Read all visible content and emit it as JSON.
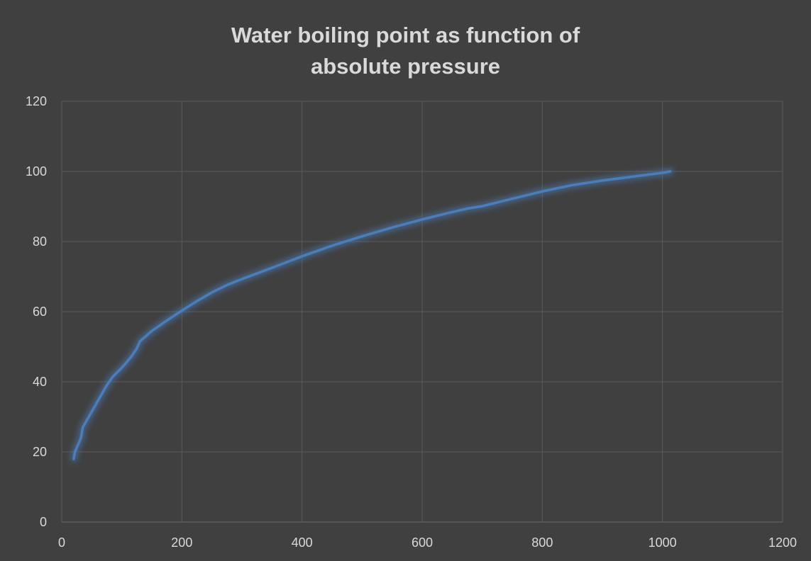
{
  "chart_data": {
    "type": "line",
    "title_lines": [
      "Water boiling point as function of",
      "absolute pressure"
    ],
    "xlabel": "",
    "ylabel": "",
    "xlim": [
      0,
      1200
    ],
    "ylim": [
      0,
      120
    ],
    "x_ticks": [
      "0",
      "200",
      "400",
      "600",
      "800",
      "1000",
      "1200"
    ],
    "y_ticks": [
      "0",
      "20",
      "40",
      "60",
      "80",
      "100",
      "120"
    ],
    "grid": true,
    "legend": "none",
    "series": [
      {
        "color": "#4a7ebb",
        "x": [
          20,
          22,
          27,
          32,
          35,
          45,
          55,
          65,
          75,
          85,
          100,
          115,
          125,
          130,
          150,
          175,
          200,
          225,
          250,
          275,
          300,
          350,
          400,
          450,
          500,
          550,
          600,
          650,
          675,
          700,
          750,
          800,
          850,
          900,
          950,
          1000,
          1013
        ],
        "y": [
          18,
          20,
          22,
          24,
          27,
          30,
          33,
          36,
          39,
          41.5,
          44,
          47,
          49.5,
          51.5,
          54.5,
          57.5,
          60.3,
          63,
          65.5,
          67.6,
          69.3,
          72.5,
          75.8,
          78.8,
          81.5,
          84,
          86.3,
          88.4,
          89.4,
          90.1,
          92.2,
          94.3,
          96.1,
          97.4,
          98.5,
          99.6,
          100
        ]
      }
    ]
  }
}
